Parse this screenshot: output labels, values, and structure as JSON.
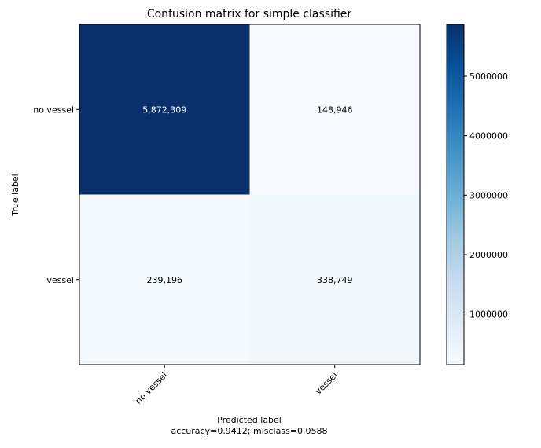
{
  "chart_data": {
    "type": "heatmap",
    "title": "Confusion matrix for simple classifier",
    "xlabel": "Predicted label",
    "xlabel_note": "accuracy=0.9412; misclass=0.0588",
    "ylabel": "True label",
    "x_categories": [
      "no vessel",
      "vessel"
    ],
    "y_categories": [
      "no vessel",
      "vessel"
    ],
    "values": [
      [
        5872309,
        148946
      ],
      [
        239196,
        338749
      ]
    ],
    "cell_labels": [
      [
        "5,872,309",
        "148,946"
      ],
      [
        "239,196",
        "338,749"
      ]
    ],
    "colormap": "Blues",
    "colorbar": {
      "range": [
        148946,
        5872309
      ],
      "ticks": [
        1000000,
        2000000,
        3000000,
        4000000,
        5000000
      ],
      "tick_labels": [
        "1000000",
        "2000000",
        "3000000",
        "4000000",
        "5000000"
      ]
    }
  }
}
